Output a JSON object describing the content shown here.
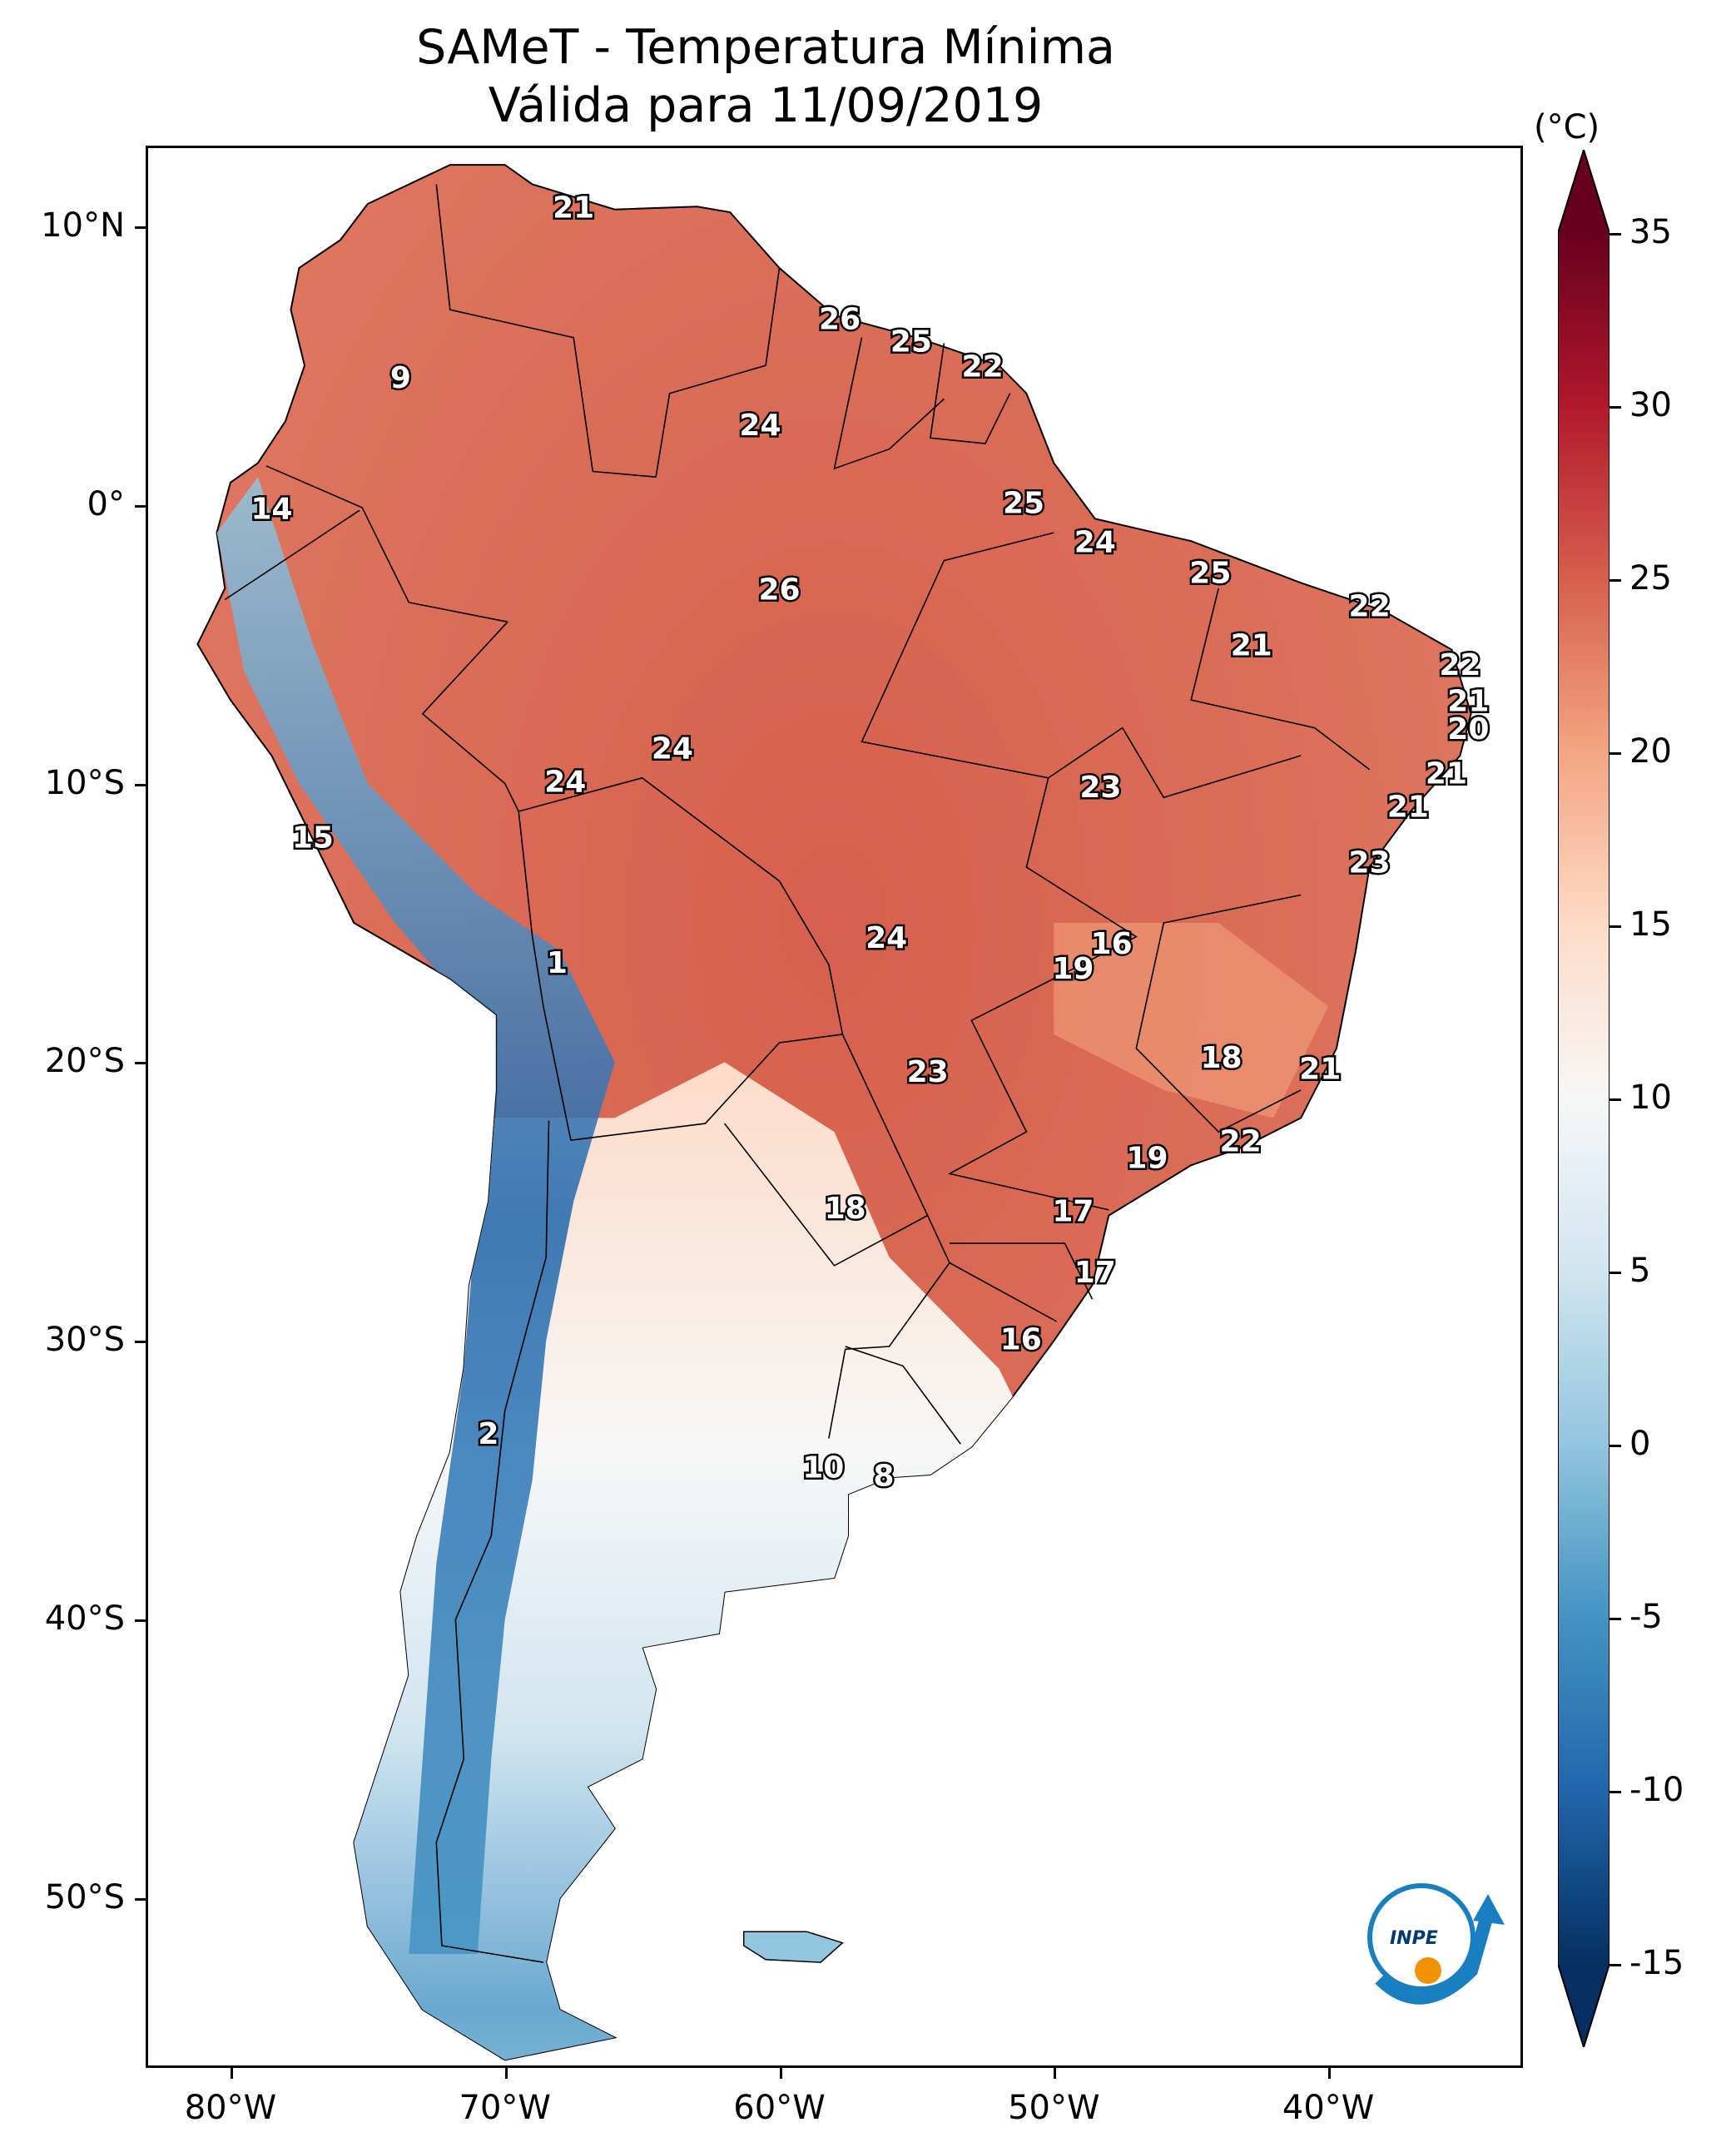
{
  "title": {
    "line1": "SAMeT - Temperatura Mínima",
    "line2": "Válida para 11/09/2019"
  },
  "map": {
    "lat_ticks": [
      "10°N",
      "0°",
      "10°S",
      "20°S",
      "30°S",
      "40°S",
      "50°S"
    ],
    "lon_ticks": [
      "80°W",
      "70°W",
      "60°W",
      "50°W",
      "40°W"
    ],
    "station_values": [
      {
        "label": "21",
        "lat": 10.6,
        "lon": -67.5
      },
      {
        "label": "9",
        "lat": 4.5,
        "lon": -73.8
      },
      {
        "label": "26",
        "lat": 6.6,
        "lon": -57.8
      },
      {
        "label": "25",
        "lat": 5.8,
        "lon": -55.2
      },
      {
        "label": "22",
        "lat": 4.9,
        "lon": -52.6
      },
      {
        "label": "24",
        "lat": 2.8,
        "lon": -60.7
      },
      {
        "label": "14",
        "lat": -0.2,
        "lon": -78.5
      },
      {
        "label": "25",
        "lat": 0.0,
        "lon": -51.1
      },
      {
        "label": "24",
        "lat": -1.4,
        "lon": -48.5
      },
      {
        "label": "26",
        "lat": -3.1,
        "lon": -60.0
      },
      {
        "label": "25",
        "lat": -2.5,
        "lon": -44.3
      },
      {
        "label": "22",
        "lat": -3.7,
        "lon": -38.5
      },
      {
        "label": "21",
        "lat": -5.1,
        "lon": -42.8
      },
      {
        "label": "22",
        "lat": -5.8,
        "lon": -35.2
      },
      {
        "label": "21",
        "lat": -7.1,
        "lon": -34.9
      },
      {
        "label": "20",
        "lat": -8.1,
        "lon": -34.9
      },
      {
        "label": "24",
        "lat": -8.8,
        "lon": -63.9
      },
      {
        "label": "24",
        "lat": -10.0,
        "lon": -67.8
      },
      {
        "label": "23",
        "lat": -10.2,
        "lon": -48.3
      },
      {
        "label": "21",
        "lat": -9.7,
        "lon": -35.7
      },
      {
        "label": "21",
        "lat": -10.9,
        "lon": -37.1
      },
      {
        "label": "15",
        "lat": -12.0,
        "lon": -77.0
      },
      {
        "label": "23",
        "lat": -12.9,
        "lon": -38.5
      },
      {
        "label": "24",
        "lat": -15.6,
        "lon": -56.1
      },
      {
        "label": "16",
        "lat": -15.8,
        "lon": -47.9
      },
      {
        "label": "19",
        "lat": -16.7,
        "lon": -49.3
      },
      {
        "label": "1",
        "lat": -16.5,
        "lon": -68.1
      },
      {
        "label": "18",
        "lat": -19.9,
        "lon": -43.9
      },
      {
        "label": "21",
        "lat": -20.3,
        "lon": -40.3
      },
      {
        "label": "23",
        "lat": -20.4,
        "lon": -54.6
      },
      {
        "label": "22",
        "lat": -22.9,
        "lon": -43.2
      },
      {
        "label": "19",
        "lat": -23.5,
        "lon": -46.6
      },
      {
        "label": "18",
        "lat": -25.3,
        "lon": -57.6
      },
      {
        "label": "17",
        "lat": -25.4,
        "lon": -49.3
      },
      {
        "label": "17",
        "lat": -27.6,
        "lon": -48.5
      },
      {
        "label": "16",
        "lat": -30.0,
        "lon": -51.2
      },
      {
        "label": "2",
        "lat": -33.4,
        "lon": -70.6
      },
      {
        "label": "10",
        "lat": -34.6,
        "lon": -58.4
      },
      {
        "label": "8",
        "lat": -34.9,
        "lon": -56.2
      }
    ],
    "logo_text": "INPE"
  },
  "colorbar": {
    "unit": "(°C)",
    "ticks": [
      "35",
      "30",
      "25",
      "20",
      "15",
      "10",
      "5",
      "0",
      "-5",
      "-10",
      "-15"
    ],
    "colors": {
      "c35": "#67001f",
      "c30": "#b2182b",
      "c25": "#d6604d",
      "c20": "#f4a582",
      "c15": "#fddbc7",
      "c10": "#f7f7f7",
      "c5": "#d1e5f0",
      "c0": "#92c5de",
      "cm5": "#4393c3",
      "cm10": "#2166ac",
      "cm15": "#053061"
    }
  }
}
